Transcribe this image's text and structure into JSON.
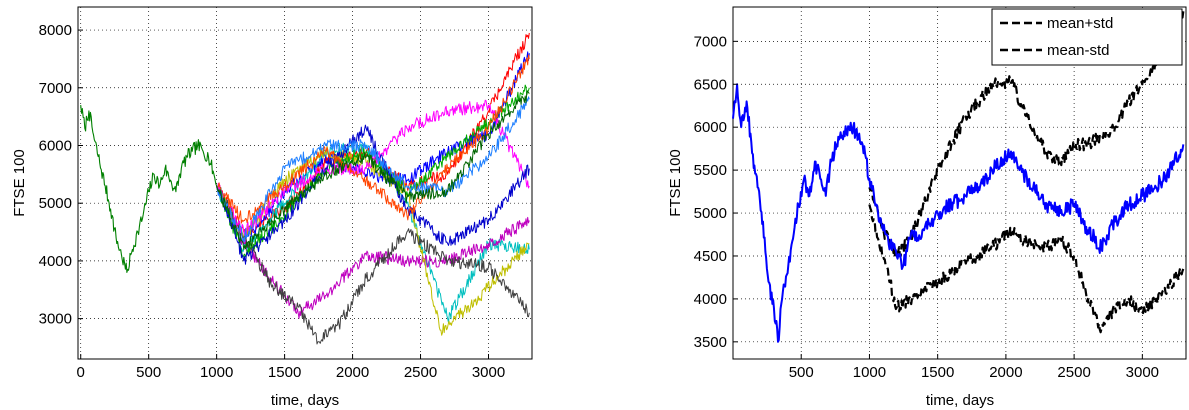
{
  "chart_data": [
    {
      "type": "line",
      "title": "",
      "xlabel": "time, days",
      "ylabel": "FTSE 100",
      "xlim": [
        -20,
        3320
      ],
      "ylim": [
        2300,
        8400
      ],
      "grid": true,
      "x_ticks": [
        0,
        500,
        1000,
        1500,
        2000,
        2500,
        3000
      ],
      "y_ticks": [
        3000,
        4000,
        5000,
        6000,
        7000,
        8000
      ],
      "x_tick_labels": [
        "0",
        "500",
        "1000",
        "1500",
        "2000",
        "2500",
        "3000"
      ],
      "y_tick_labels": [
        "3000",
        "4000",
        "5000",
        "6000",
        "7000",
        "8000"
      ],
      "history": {
        "color": "#008000",
        "x": [
          0,
          30,
          60,
          100,
          140,
          180,
          220,
          260,
          300,
          340,
          380,
          420,
          460,
          500,
          540,
          580,
          620,
          660,
          700,
          740,
          780,
          820,
          860,
          900,
          940,
          980,
          1000
        ],
        "y": [
          6700,
          6300,
          6600,
          6100,
          5700,
          5300,
          4900,
          4400,
          4100,
          3800,
          4200,
          4500,
          4800,
          5200,
          5500,
          5300,
          5600,
          5400,
          5200,
          5600,
          5800,
          5900,
          6000,
          5900,
          5800,
          5500,
          5300
        ]
      },
      "series": [
        {
          "color": "#ff0000",
          "x": [
            1000,
            1200,
            1500,
            1800,
            2100,
            2400,
            2700,
            3000,
            3300
          ],
          "y": [
            5300,
            4500,
            4900,
            5700,
            5900,
            5300,
            5500,
            6600,
            7950
          ]
        },
        {
          "color": "#0000ff",
          "x": [
            1000,
            1200,
            1500,
            1800,
            2100,
            2400,
            2700,
            3000,
            3300
          ],
          "y": [
            5300,
            4300,
            5200,
            5800,
            5500,
            5400,
            5900,
            6200,
            7600
          ]
        },
        {
          "color": "#00bfbf",
          "x": [
            1000,
            1200,
            1500,
            1800,
            2100,
            2400,
            2700,
            3000,
            3300
          ],
          "y": [
            5300,
            4200,
            5000,
            5900,
            6000,
            5000,
            3000,
            4300,
            4200
          ]
        },
        {
          "color": "#bf00bf",
          "x": [
            1000,
            1200,
            1400,
            1600,
            1800,
            2100,
            2400,
            2700,
            3000,
            3300
          ],
          "y": [
            5300,
            4300,
            3700,
            3100,
            3400,
            4100,
            4000,
            4000,
            4300,
            4700
          ]
        },
        {
          "color": "#bfbf00",
          "x": [
            1000,
            1200,
            1500,
            1800,
            2100,
            2400,
            2650,
            2900,
            3300
          ],
          "y": [
            5300,
            4400,
            5400,
            5900,
            5700,
            5200,
            2800,
            3300,
            4300
          ]
        },
        {
          "color": "#404040",
          "x": [
            1000,
            1200,
            1400,
            1600,
            1750,
            1900,
            2100,
            2400,
            2700,
            3000,
            3300
          ],
          "y": [
            5300,
            4400,
            3600,
            3200,
            2600,
            2900,
            3700,
            4500,
            4000,
            3900,
            3100
          ]
        },
        {
          "color": "#00aa00",
          "x": [
            1000,
            1200,
            1500,
            1800,
            2100,
            2400,
            2700,
            3000,
            3300
          ],
          "y": [
            5300,
            4100,
            4800,
            5600,
            5900,
            5200,
            5800,
            6400,
            7000
          ]
        },
        {
          "color": "#ff00ff",
          "x": [
            1000,
            1200,
            1500,
            1800,
            2100,
            2400,
            2700,
            3000,
            3300
          ],
          "y": [
            5300,
            4500,
            5200,
            5600,
            5600,
            6300,
            6600,
            6700,
            5300
          ]
        },
        {
          "color": "#0000cc",
          "x": [
            1000,
            1200,
            1500,
            1800,
            2100,
            2400,
            2700,
            3000,
            3300
          ],
          "y": [
            5300,
            4000,
            4700,
            5600,
            6300,
            4900,
            4300,
            4700,
            5600
          ]
        },
        {
          "color": "#ff4400",
          "x": [
            1000,
            1200,
            1500,
            1800,
            2100,
            2400,
            2700,
            3000,
            3300
          ],
          "y": [
            5300,
            4700,
            5300,
            5900,
            5400,
            4800,
            5600,
            6300,
            7500
          ]
        },
        {
          "color": "#2080ff",
          "x": [
            1000,
            1200,
            1500,
            1800,
            2100,
            2400,
            2700,
            3000,
            3300
          ],
          "y": [
            5300,
            4400,
            5600,
            6000,
            6000,
            5300,
            5200,
            5800,
            6800
          ]
        },
        {
          "color": "#006400",
          "x": [
            1000,
            1200,
            1500,
            1800,
            2100,
            2400,
            2700,
            3000,
            3300
          ],
          "y": [
            5300,
            4200,
            4900,
            5500,
            5800,
            5100,
            5200,
            6200,
            6900
          ]
        }
      ]
    },
    {
      "type": "line",
      "title": "",
      "xlabel": "time, days",
      "ylabel": "FTSE 100",
      "xlim": [
        0,
        3320
      ],
      "ylim": [
        3300,
        7400
      ],
      "grid": true,
      "x_ticks": [
        500,
        1000,
        1500,
        2000,
        2500,
        3000
      ],
      "y_ticks": [
        3500,
        4000,
        4500,
        5000,
        5500,
        6000,
        6500,
        7000
      ],
      "x_tick_labels": [
        "500",
        "1000",
        "1500",
        "2000",
        "2500",
        "3000"
      ],
      "y_tick_labels": [
        "3500",
        "4000",
        "4500",
        "5000",
        "5500",
        "6000",
        "6500",
        "7000"
      ],
      "legend_position": "top-right",
      "legend": [
        "mean+std",
        "mean-std"
      ],
      "mean": {
        "color": "#0000ff",
        "x": [
          0,
          30,
          60,
          100,
          140,
          180,
          220,
          260,
          300,
          330,
          360,
          400,
          440,
          480,
          520,
          560,
          600,
          640,
          680,
          720,
          760,
          800,
          850,
          900,
          950,
          1000,
          1050,
          1100,
          1200,
          1250,
          1300,
          1400,
          1500,
          1600,
          1700,
          1800,
          1900,
          2000,
          2050,
          2100,
          2200,
          2300,
          2400,
          2500,
          2600,
          2700,
          2800,
          2900,
          3000,
          3100,
          3200,
          3300
        ],
        "y": [
          6100,
          6500,
          6000,
          6300,
          5700,
          5300,
          4900,
          4200,
          3900,
          3500,
          4000,
          4300,
          4700,
          5100,
          5400,
          5200,
          5600,
          5400,
          5200,
          5600,
          5800,
          5900,
          6000,
          5950,
          5800,
          5400,
          5100,
          4800,
          4500,
          4400,
          4700,
          4800,
          5000,
          5100,
          5200,
          5300,
          5500,
          5650,
          5700,
          5500,
          5300,
          5100,
          5000,
          5100,
          4800,
          4600,
          4900,
          5100,
          5200,
          5300,
          5500,
          5800
        ]
      },
      "series": [
        {
          "name": "mean+std",
          "color": "#000000",
          "dash": "dashed",
          "x": [
            1000,
            1050,
            1100,
            1200,
            1300,
            1400,
            1500,
            1600,
            1700,
            1800,
            1900,
            2000,
            2050,
            2100,
            2200,
            2300,
            2400,
            2500,
            2600,
            2700,
            2800,
            2900,
            3000,
            3100,
            3200,
            3300
          ],
          "y": [
            5300,
            5100,
            4800,
            4500,
            4700,
            5100,
            5500,
            5800,
            6100,
            6300,
            6500,
            6500,
            6550,
            6300,
            6000,
            5700,
            5600,
            5800,
            5800,
            5900,
            6000,
            6300,
            6500,
            6700,
            7000,
            7350
          ]
        },
        {
          "name": "mean-std",
          "color": "#000000",
          "dash": "dashed",
          "x": [
            1000,
            1050,
            1100,
            1200,
            1300,
            1400,
            1500,
            1600,
            1700,
            1800,
            1900,
            2000,
            2050,
            2100,
            2200,
            2300,
            2400,
            2500,
            2600,
            2700,
            2800,
            2900,
            3000,
            3100,
            3200,
            3300
          ],
          "y": [
            5100,
            4800,
            4500,
            3900,
            4000,
            4100,
            4200,
            4300,
            4450,
            4500,
            4600,
            4750,
            4800,
            4700,
            4650,
            4600,
            4700,
            4500,
            4000,
            3650,
            3900,
            4000,
            3850,
            4000,
            4150,
            4350
          ]
        }
      ]
    }
  ]
}
